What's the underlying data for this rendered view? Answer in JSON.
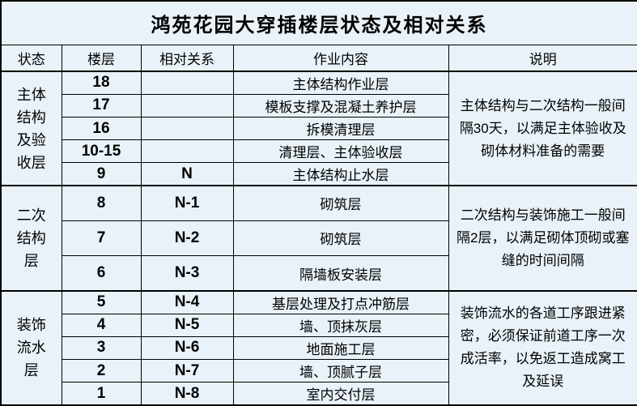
{
  "title": "鸿苑花园大穿插楼层状态及相对关系",
  "columns": [
    "状态",
    "楼层",
    "相对关系",
    "作业内容",
    "说明"
  ],
  "groups": [
    {
      "state": "主体结构及验收层",
      "note": "主体结构与二次结构一般间隔30天，以满足主体验收及砌体材料准备的需要",
      "rows": [
        {
          "floor": "18",
          "relation": "",
          "work": "主体结构作业层"
        },
        {
          "floor": "17",
          "relation": "",
          "work": "模板支撑及混凝土养护层"
        },
        {
          "floor": "16",
          "relation": "",
          "work": "拆模清理层"
        },
        {
          "floor": "10-15",
          "relation": "",
          "work": "清理层、主体验收层"
        },
        {
          "floor": "9",
          "relation": "N",
          "work": "主体结构止水层"
        }
      ]
    },
    {
      "state": "二次结构层",
      "note": "二次结构与装饰施工一般间隔2层，以满足砌体顶砌或塞缝的时间间隔",
      "rows": [
        {
          "floor": "8",
          "relation": "N-1",
          "work": "砌筑层"
        },
        {
          "floor": "7",
          "relation": "N-2",
          "work": "砌筑层"
        },
        {
          "floor": "6",
          "relation": "N-3",
          "work": "隔墙板安装层"
        }
      ]
    },
    {
      "state": "装饰流水层",
      "note": "装饰流水的各道工序跟进紧密，必须保证前道工序一次成活率，以免返工造成窝工及延误",
      "rows": [
        {
          "floor": "5",
          "relation": "N-4",
          "work": "基层处理及打点冲筋层"
        },
        {
          "floor": "4",
          "relation": "N-5",
          "work": "墙、顶抹灰层"
        },
        {
          "floor": "3",
          "relation": "N-6",
          "work": "地面施工层"
        },
        {
          "floor": "2",
          "relation": "N-7",
          "work": "墙、顶腻子层"
        },
        {
          "floor": "1",
          "relation": "N-8",
          "work": "室内交付层"
        }
      ]
    }
  ],
  "colors": {
    "background": "#e9f2f9",
    "border": "#000000",
    "text": "#000000"
  }
}
